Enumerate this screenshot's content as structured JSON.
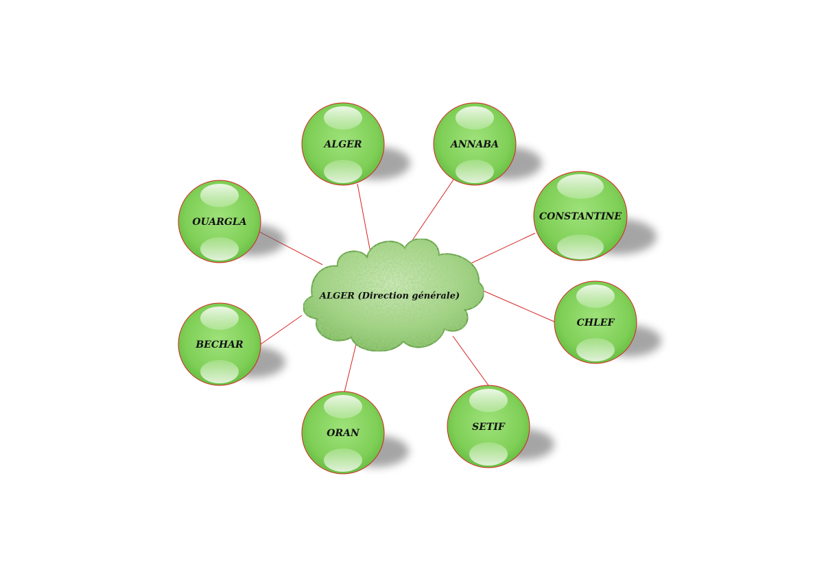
{
  "diagram": {
    "center": {
      "label": "ALGER (Direction générale)"
    },
    "nodes": [
      {
        "id": "alger",
        "label": "ALGER"
      },
      {
        "id": "annaba",
        "label": "ANNABA"
      },
      {
        "id": "constantine",
        "label": "CONSTANTINE"
      },
      {
        "id": "chlef",
        "label": "CHLEF"
      },
      {
        "id": "setif",
        "label": "SETIF"
      },
      {
        "id": "oran",
        "label": "ORAN"
      },
      {
        "id": "bechar",
        "label": "BECHAR"
      },
      {
        "id": "ouargla",
        "label": "OUARGLA"
      }
    ]
  },
  "colors": {
    "sphere_fill": "#7fcf57",
    "sphere_light": "#d8f5c4",
    "sphere_border": "#d62020",
    "connector": "#d62020",
    "cloud_fill": "#8cc96a",
    "cloud_dark": "#5e9e3e",
    "text": "#111111"
  }
}
